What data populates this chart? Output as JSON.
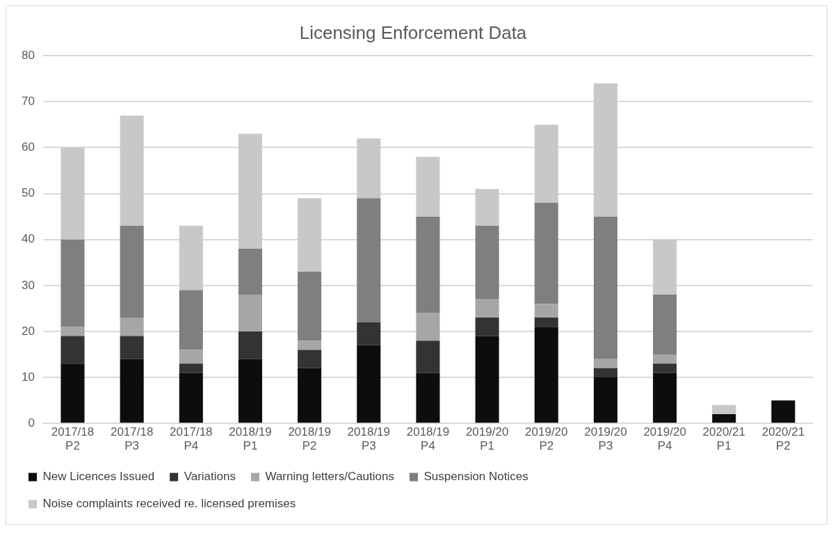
{
  "chart_data": {
    "type": "bar",
    "title": "Licensing Enforcement Data",
    "stacked": true,
    "categories": [
      "2017/18 P2",
      "2017/18 P3",
      "2017/18 P4",
      "2018/19 P1",
      "2018/19 P2",
      "2018/19 P3",
      "2018/19 P4",
      "2019/20 P1",
      "2019/20 P2",
      "2019/20 P3",
      "2019/20 P4",
      "2020/21 P1",
      "2020/21 P2"
    ],
    "series": [
      {
        "name": "New Licences Issued",
        "color": "#0d0d0d",
        "values": [
          13,
          14,
          11,
          14,
          12,
          17,
          11,
          19,
          21,
          10,
          11,
          2,
          5
        ]
      },
      {
        "name": "Variations",
        "color": "#333333",
        "values": [
          6,
          5,
          2,
          6,
          4,
          5,
          7,
          4,
          2,
          2,
          2,
          0,
          0
        ]
      },
      {
        "name": "Warning letters/Cautions",
        "color": "#a6a6a6",
        "values": [
          2,
          4,
          3,
          8,
          2,
          0,
          6,
          4,
          3,
          2,
          2,
          0,
          0
        ]
      },
      {
        "name": "Suspension Notices",
        "color": "#7f7f7f",
        "values": [
          19,
          20,
          13,
          10,
          15,
          27,
          21,
          16,
          22,
          31,
          13,
          0,
          0
        ]
      },
      {
        "name": "Noise complaints received re. licensed premises",
        "color": "#c8c8c8",
        "values": [
          20,
          24,
          14,
          25,
          16,
          13,
          13,
          8,
          17,
          29,
          12,
          2,
          0
        ]
      }
    ],
    "ylim": [
      0,
      80
    ],
    "yticks": [
      0,
      10,
      20,
      30,
      40,
      50,
      60,
      70,
      80
    ],
    "grid": "y",
    "legend": "bottom"
  }
}
